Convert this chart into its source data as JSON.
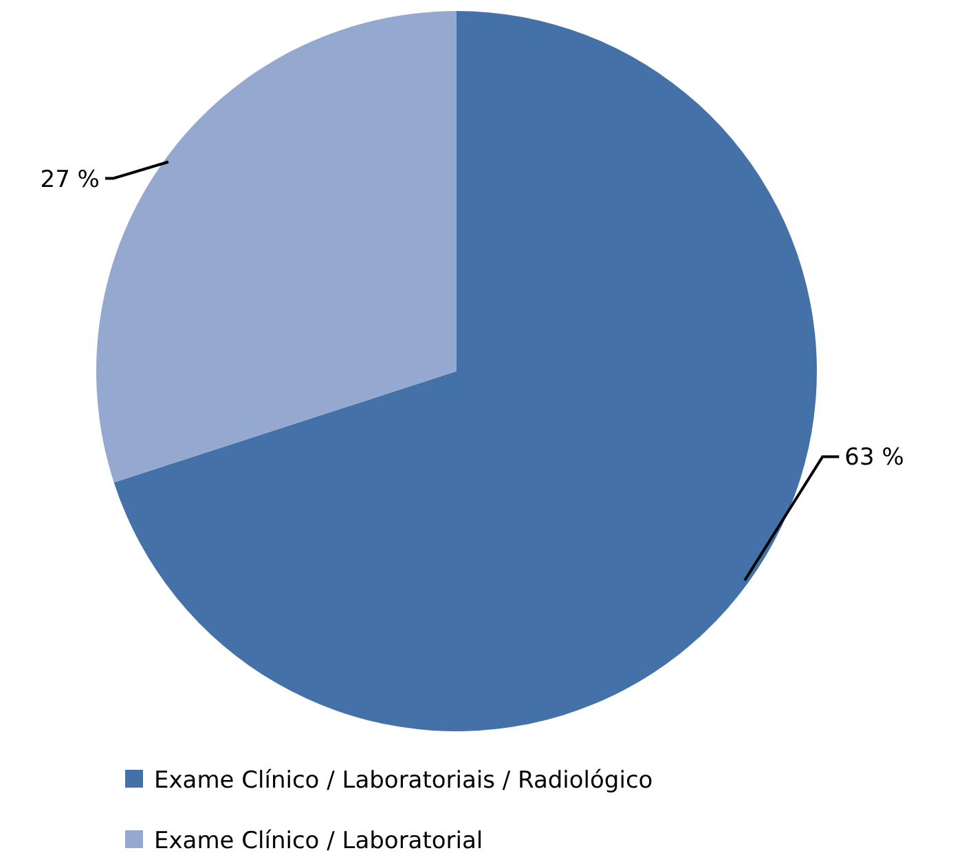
{
  "chart_data": {
    "type": "pie",
    "categories": [
      "Exame Clínico / Laboratoriais / Radiológico",
      "Exame Clínico / Laboratorial"
    ],
    "values": [
      63,
      27
    ],
    "colors": [
      "#4472a8",
      "#94a8d0"
    ],
    "value_labels": [
      "63 %",
      "27 %"
    ],
    "legend": "bottom"
  }
}
